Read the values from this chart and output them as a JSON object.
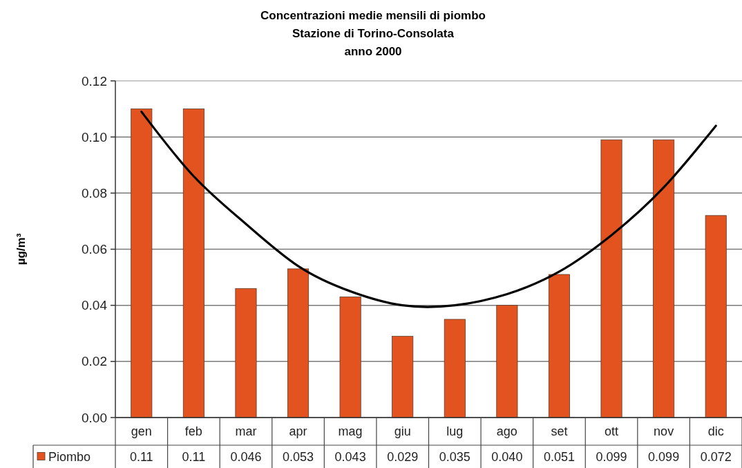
{
  "chart_data": {
    "type": "bar",
    "title": "Concentrazioni medie mensili di piombo\nStazione di Torino-Consolata\nanno 2000",
    "ylabel": "µg/m³",
    "categories": [
      "gen",
      "feb",
      "mar",
      "apr",
      "mag",
      "giu",
      "lug",
      "ago",
      "set",
      "ott",
      "nov",
      "dic"
    ],
    "series": [
      {
        "name": "Piombo",
        "color": "#e2531f",
        "values": [
          0.11,
          0.11,
          0.046,
          0.053,
          0.043,
          0.029,
          0.035,
          0.04,
          0.051,
          0.099,
          0.099,
          0.072
        ],
        "value_labels": [
          "0.11",
          "0.11",
          "0.046",
          "0.053",
          "0.043",
          "0.029",
          "0.035",
          "0.040",
          "0.051",
          "0.099",
          "0.099",
          "0.072"
        ]
      },
      {
        "type": "line",
        "color": "#000000",
        "values": [
          0.109,
          0.086,
          0.069,
          0.054,
          0.045,
          0.04,
          0.04,
          0.044,
          0.052,
          0.065,
          0.082,
          0.104
        ]
      }
    ],
    "ylim": [
      0,
      0.12
    ],
    "yticks": [
      {
        "value": 0,
        "label": "0.00"
      },
      {
        "value": 0.02,
        "label": "0.02"
      },
      {
        "value": 0.04,
        "label": "0.04"
      },
      {
        "value": 0.06,
        "label": "0.06"
      },
      {
        "value": 0.08,
        "label": "0.08"
      },
      {
        "value": 0.1,
        "label": "0.10"
      },
      {
        "value": 0.12,
        "label": "0.12"
      }
    ],
    "grid": "y",
    "legend": "bottom left"
  }
}
